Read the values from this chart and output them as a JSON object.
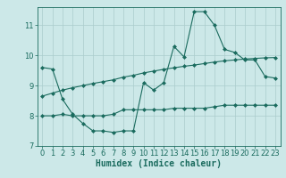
{
  "xlabel": "Humidex (Indice chaleur)",
  "background_color": "#cce8e8",
  "line_color": "#1a6b5e",
  "grid_color": "#aacccc",
  "xlim": [
    -0.5,
    23.5
  ],
  "ylim": [
    7,
    11.6
  ],
  "yticks": [
    7,
    8,
    9,
    10,
    11
  ],
  "xticks": [
    0,
    1,
    2,
    3,
    4,
    5,
    6,
    7,
    8,
    9,
    10,
    11,
    12,
    13,
    14,
    15,
    16,
    17,
    18,
    19,
    20,
    21,
    22,
    23
  ],
  "curve1_x": [
    0,
    1,
    2,
    3,
    4,
    5,
    6,
    7,
    8,
    9,
    10,
    11,
    12,
    13,
    14,
    15,
    16,
    17,
    18,
    19,
    20,
    21,
    22,
    23
  ],
  "curve1_y": [
    9.6,
    9.55,
    8.55,
    8.05,
    7.75,
    7.5,
    7.5,
    7.45,
    7.5,
    7.5,
    9.1,
    8.85,
    9.1,
    10.3,
    9.95,
    11.45,
    11.45,
    11.0,
    10.2,
    10.1,
    9.85,
    9.85,
    9.3,
    9.25
  ],
  "curve2_x": [
    0,
    1,
    2,
    3,
    4,
    5,
    6,
    7,
    8,
    9,
    10,
    11,
    12,
    13,
    14,
    15,
    16,
    17,
    18,
    19,
    20,
    21,
    22,
    23
  ],
  "curve2_y": [
    8.0,
    8.0,
    8.05,
    8.0,
    8.0,
    8.0,
    8.0,
    8.05,
    8.2,
    8.2,
    8.2,
    8.2,
    8.2,
    8.25,
    8.25,
    8.25,
    8.25,
    8.3,
    8.35,
    8.35,
    8.35,
    8.35,
    8.35,
    8.35
  ],
  "curve3_x": [
    0,
    1,
    2,
    3,
    4,
    5,
    6,
    7,
    8,
    9,
    10,
    11,
    12,
    13,
    14,
    15,
    16,
    17,
    18,
    19,
    20,
    21,
    22,
    23
  ],
  "curve3_y": [
    8.65,
    8.75,
    8.85,
    8.93,
    9.0,
    9.07,
    9.13,
    9.19,
    9.28,
    9.34,
    9.42,
    9.48,
    9.54,
    9.59,
    9.64,
    9.68,
    9.73,
    9.78,
    9.82,
    9.85,
    9.88,
    9.9,
    9.92,
    9.93
  ],
  "xlabel_fontsize": 7,
  "tick_fontsize": 6,
  "marker": "D",
  "marker_size": 2.0,
  "line_width": 0.8
}
